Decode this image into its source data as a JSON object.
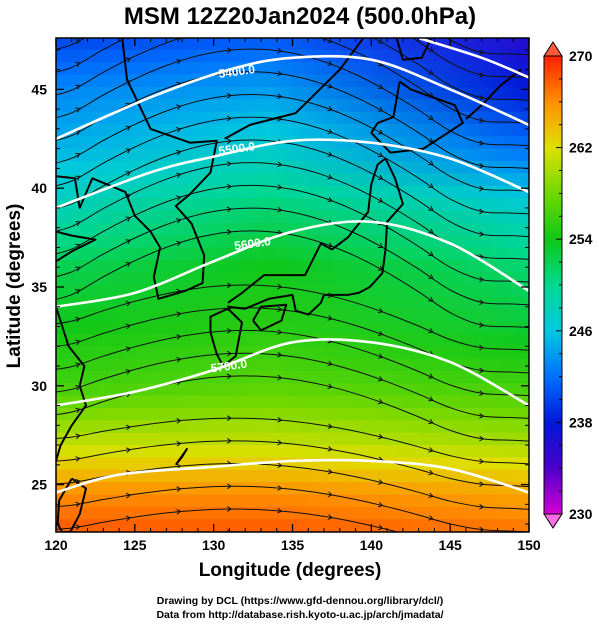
{
  "chart_data": {
    "type": "heatmap",
    "title": "MSM 12Z20Jan2024 (500.0hPa)",
    "xlabel": "Longitude (degrees)",
    "ylabel": "Latitude  (degrees)",
    "xlim": [
      120,
      150
    ],
    "ylim": [
      22.6,
      47.6
    ],
    "xticks": [
      120,
      125,
      130,
      135,
      140,
      145,
      150
    ],
    "yticks": [
      25,
      30,
      35,
      40,
      45
    ],
    "grid": false,
    "colorbar": {
      "range": [
        230,
        270
      ],
      "ticks": [
        230,
        238,
        246,
        254,
        262,
        270
      ],
      "stops": [
        {
          "value": 230,
          "color": "#d400d4"
        },
        {
          "value": 234,
          "color": "#4b00c8"
        },
        {
          "value": 238,
          "color": "#0018d8"
        },
        {
          "value": 242,
          "color": "#0070ff"
        },
        {
          "value": 246,
          "color": "#00c8e0"
        },
        {
          "value": 250,
          "color": "#00d890"
        },
        {
          "value": 254,
          "color": "#10c818"
        },
        {
          "value": 258,
          "color": "#70d800"
        },
        {
          "value": 262,
          "color": "#e0e000"
        },
        {
          "value": 266,
          "color": "#ff9000"
        },
        {
          "value": 270,
          "color": "#ff2000"
        }
      ]
    },
    "temperature_field": [
      {
        "lat": 47.6,
        "west": 240,
        "center": 241,
        "east": 236
      },
      {
        "lat": 45.0,
        "west": 243,
        "center": 244,
        "east": 238
      },
      {
        "lat": 42.0,
        "west": 245,
        "center": 247,
        "east": 242
      },
      {
        "lat": 39.0,
        "west": 248,
        "center": 251,
        "east": 247
      },
      {
        "lat": 36.0,
        "west": 252,
        "center": 254,
        "east": 251
      },
      {
        "lat": 33.0,
        "west": 254,
        "center": 255,
        "east": 253
      },
      {
        "lat": 30.0,
        "west": 256,
        "center": 257,
        "east": 256
      },
      {
        "lat": 27.0,
        "west": 261,
        "center": 261,
        "east": 260
      },
      {
        "lat": 24.5,
        "west": 266,
        "center": 266,
        "east": 265
      },
      {
        "lat": 22.6,
        "west": 268,
        "center": 268,
        "east": 267
      }
    ],
    "contours": [
      {
        "label": "5400.0",
        "label_lon": 131.5,
        "label_lat": 45.7,
        "points": [
          [
            120,
            42.5
          ],
          [
            126,
            44.6
          ],
          [
            131,
            46.0
          ],
          [
            135,
            46.6
          ],
          [
            140,
            46.5
          ],
          [
            145,
            45.0
          ],
          [
            150,
            43.2
          ]
        ]
      },
      {
        "label": "5500.0",
        "label_lon": 131.5,
        "label_lat": 41.8,
        "points": [
          [
            120,
            39.0
          ],
          [
            126,
            40.8
          ],
          [
            130,
            41.6
          ],
          [
            135,
            42.4
          ],
          [
            140,
            42.3
          ],
          [
            145,
            41.5
          ],
          [
            150,
            39.8
          ]
        ]
      },
      {
        "label": "5600.0",
        "label_lon": 132.5,
        "label_lat": 37.0,
        "points": [
          [
            120,
            34.0
          ],
          [
            125,
            34.7
          ],
          [
            130,
            36.3
          ],
          [
            135,
            37.8
          ],
          [
            140,
            38.3
          ],
          [
            145,
            37.2
          ],
          [
            150,
            34.8
          ]
        ]
      },
      {
        "label": "5700.0",
        "label_lon": 131.0,
        "label_lat": 30.8,
        "points": [
          [
            120,
            29.0
          ],
          [
            125,
            29.7
          ],
          [
            130,
            30.8
          ],
          [
            135,
            32.2
          ],
          [
            140,
            32.2
          ],
          [
            145,
            31.2
          ],
          [
            150,
            29.0
          ]
        ]
      },
      {
        "label": "",
        "label_lon": 0,
        "label_lat": 0,
        "points": [
          [
            120,
            24.6
          ],
          [
            124,
            25.5
          ],
          [
            130,
            25.9
          ],
          [
            135,
            26.2
          ],
          [
            140,
            26.2
          ],
          [
            145,
            25.8
          ],
          [
            150,
            24.6
          ]
        ]
      },
      {
        "label": "",
        "label_lon": 0,
        "label_lat": 0,
        "points": [
          [
            143,
            47.6
          ],
          [
            147,
            46.6
          ],
          [
            150,
            45.6
          ]
        ]
      }
    ],
    "coastlines": [
      {
        "name": "china-korea",
        "points": [
          [
            124.2,
            47.6
          ],
          [
            124.5,
            45.5
          ],
          [
            126.0,
            43.0
          ],
          [
            128.5,
            42.3
          ],
          [
            130.2,
            42.4
          ],
          [
            129.8,
            40.8
          ],
          [
            128.5,
            39.7
          ],
          [
            127.6,
            39.1
          ],
          [
            128.6,
            38.2
          ],
          [
            129.4,
            36.6
          ],
          [
            129.3,
            35.2
          ],
          [
            128.2,
            34.8
          ],
          [
            126.5,
            34.4
          ],
          [
            126.2,
            35.5
          ],
          [
            126.6,
            37.0
          ],
          [
            126.0,
            37.8
          ],
          [
            125.0,
            38.6
          ],
          [
            124.4,
            39.8
          ],
          [
            122.3,
            40.5
          ],
          [
            121.5,
            39.0
          ],
          [
            121.2,
            40.5
          ],
          [
            120.0,
            40.6
          ]
        ]
      },
      {
        "name": "shandong-china",
        "points": [
          [
            120.0,
            37.8
          ],
          [
            121.0,
            37.6
          ],
          [
            122.5,
            37.4
          ],
          [
            121.0,
            36.8
          ],
          [
            120.0,
            36.3
          ]
        ]
      },
      {
        "name": "china-coast",
        "points": [
          [
            120.0,
            34.0
          ],
          [
            120.8,
            32.0
          ],
          [
            121.8,
            31.0
          ],
          [
            121.5,
            30.0
          ],
          [
            121.9,
            29.0
          ],
          [
            121.0,
            28.0
          ],
          [
            120.3,
            27.0
          ],
          [
            120.0,
            26.2
          ]
        ]
      },
      {
        "name": "hokkaido",
        "points": [
          [
            141.8,
            45.4
          ],
          [
            142.5,
            45.0
          ],
          [
            145.3,
            44.2
          ],
          [
            145.8,
            43.3
          ],
          [
            143.3,
            42.0
          ],
          [
            141.2,
            41.8
          ],
          [
            140.0,
            42.8
          ],
          [
            140.4,
            43.3
          ],
          [
            141.4,
            43.6
          ],
          [
            141.8,
            45.4
          ]
        ]
      },
      {
        "name": "honshu-east",
        "points": [
          [
            140.9,
            41.5
          ],
          [
            141.5,
            40.5
          ],
          [
            142.0,
            39.2
          ],
          [
            141.0,
            38.3
          ],
          [
            140.9,
            36.9
          ],
          [
            140.7,
            35.7
          ],
          [
            139.9,
            35.0
          ],
          [
            139.2,
            34.7
          ],
          [
            138.5,
            34.6
          ],
          [
            137.0,
            34.6
          ],
          [
            136.8,
            34.2
          ],
          [
            136.0,
            33.6
          ],
          [
            135.2,
            33.8
          ],
          [
            135.0,
            34.6
          ],
          [
            133.5,
            34.4
          ],
          [
            132.0,
            33.9
          ],
          [
            130.9,
            34.0
          ]
        ]
      },
      {
        "name": "honshu-west",
        "points": [
          [
            130.9,
            34.2
          ],
          [
            131.8,
            34.7
          ],
          [
            133.2,
            35.6
          ],
          [
            135.8,
            35.6
          ],
          [
            136.8,
            37.2
          ],
          [
            137.5,
            36.9
          ],
          [
            138.5,
            37.5
          ],
          [
            139.8,
            38.8
          ],
          [
            140.0,
            40.2
          ],
          [
            140.4,
            41.2
          ],
          [
            140.9,
            41.5
          ]
        ]
      },
      {
        "name": "shikoku",
        "points": [
          [
            132.5,
            33.3
          ],
          [
            133.0,
            32.8
          ],
          [
            134.3,
            33.3
          ],
          [
            134.6,
            34.1
          ],
          [
            133.0,
            34.0
          ],
          [
            132.5,
            33.3
          ]
        ]
      },
      {
        "name": "kyushu",
        "points": [
          [
            130.9,
            33.9
          ],
          [
            131.8,
            33.2
          ],
          [
            131.4,
            31.5
          ],
          [
            130.6,
            31.0
          ],
          [
            130.2,
            31.6
          ],
          [
            129.8,
            32.7
          ],
          [
            129.8,
            33.5
          ],
          [
            130.9,
            33.9
          ]
        ]
      },
      {
        "name": "sakhalin",
        "points": [
          [
            141.6,
            47.6
          ],
          [
            142.0,
            46.5
          ],
          [
            143.2,
            46.6
          ],
          [
            143.8,
            47.6
          ]
        ]
      },
      {
        "name": "taiwan",
        "points": [
          [
            121.0,
            25.3
          ],
          [
            121.9,
            24.8
          ],
          [
            121.5,
            23.5
          ],
          [
            120.9,
            22.6
          ],
          [
            120.4,
            22.6
          ],
          [
            120.1,
            23.0
          ],
          [
            120.2,
            24.2
          ],
          [
            121.0,
            25.3
          ]
        ]
      },
      {
        "name": "okinawa",
        "points": [
          [
            127.6,
            26.0
          ],
          [
            128.3,
            26.8
          ],
          [
            128.0,
            26.4
          ],
          [
            127.6,
            26.0
          ]
        ]
      },
      {
        "name": "primorye",
        "points": [
          [
            130.7,
            42.5
          ],
          [
            132.3,
            43.2
          ],
          [
            135.2,
            43.8
          ],
          [
            138.0,
            46.0
          ],
          [
            139.5,
            47.6
          ]
        ]
      },
      {
        "name": "kuril",
        "points": [
          [
            146.0,
            43.5
          ],
          [
            147.0,
            44.2
          ],
          [
            148.2,
            45.2
          ],
          [
            149.5,
            46.0
          ]
        ]
      }
    ]
  },
  "credits": {
    "line1": "Drawing by DCL (https://www.gfd-dennou.org/library/dcl/)",
    "line2": "Data from http://database.rish.kyoto-u.ac.jp/arch/jmadata/"
  }
}
